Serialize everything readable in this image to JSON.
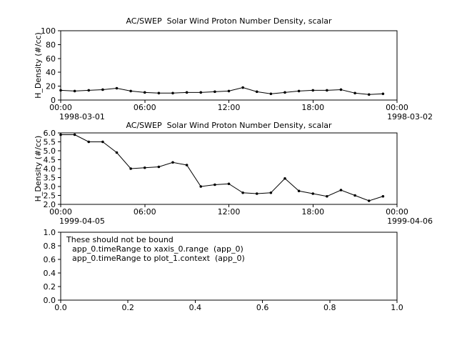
{
  "window": {
    "background": "#ffffff",
    "foreground": "#000000"
  },
  "chart_data": [
    {
      "type": "line",
      "title": "AC/SWEP  Solar Wind Proton Number Density, scalar",
      "ylabel": "H_Density (#/cc)",
      "xlim": [
        0,
        24
      ],
      "ylim": [
        0,
        100
      ],
      "yticks": [
        0,
        20,
        40,
        60,
        80,
        100
      ],
      "ytick_labels": [
        "0",
        "20",
        "40",
        "60",
        "80",
        "100"
      ],
      "xticks": [
        0,
        6,
        12,
        18,
        24
      ],
      "xtick_labels": [
        "00:00",
        "06:00",
        "12:00",
        "18:00",
        "00:00"
      ],
      "x_date_left": "1998-03-01",
      "x_date_right": "1998-03-02",
      "x": [
        0,
        1,
        2,
        3,
        4,
        5,
        6,
        7,
        8,
        9,
        10,
        11,
        12,
        13,
        14,
        15,
        16,
        17,
        18,
        19,
        20,
        21,
        22,
        23
      ],
      "y": [
        14,
        13,
        14,
        15,
        17,
        13,
        11,
        10,
        10,
        11,
        11,
        12,
        13,
        18,
        12,
        9,
        11,
        13,
        14,
        14,
        15,
        10,
        8,
        9
      ],
      "line_color": "#000000",
      "marker": "dot",
      "grid": false,
      "legend": null
    },
    {
      "type": "line",
      "title": "AC/SWEP  Solar Wind Proton Number Density, scalar",
      "ylabel": "H_Density (#/cc)",
      "xlim": [
        0,
        24
      ],
      "ylim": [
        2.0,
        6.0
      ],
      "yticks": [
        2.0,
        2.5,
        3.0,
        3.5,
        4.0,
        4.5,
        5.0,
        5.5,
        6.0
      ],
      "ytick_labels": [
        "2.0",
        "2.5",
        "3.0",
        "3.5",
        "4.0",
        "4.5",
        "5.0",
        "5.5",
        "6.0"
      ],
      "xticks": [
        0,
        6,
        12,
        18,
        24
      ],
      "xtick_labels": [
        "00:00",
        "06:00",
        "12:00",
        "18:00",
        "00:00"
      ],
      "x_date_left": "1999-04-05",
      "x_date_right": "1999-04-06",
      "x": [
        0,
        1,
        2,
        3,
        4,
        5,
        6,
        7,
        8,
        9,
        10,
        11,
        12,
        13,
        14,
        15,
        16,
        17,
        18,
        19,
        20,
        21,
        22,
        23
      ],
      "y": [
        5.9,
        5.9,
        5.5,
        5.5,
        4.9,
        4.0,
        4.05,
        4.1,
        4.35,
        4.2,
        3.0,
        3.1,
        3.15,
        2.65,
        2.6,
        2.65,
        3.45,
        2.75,
        2.6,
        2.45,
        2.8,
        2.5,
        2.2,
        2.45
      ],
      "line_color": "#000000",
      "marker": "dot",
      "grid": false,
      "legend": null
    },
    {
      "type": "annotation",
      "title": "",
      "ylabel": "",
      "xlim": [
        0,
        1
      ],
      "ylim": [
        0,
        1
      ],
      "yticks": [
        0,
        0.2,
        0.4,
        0.6,
        0.8,
        1.0
      ],
      "ytick_labels": [
        "0.0",
        "0.2",
        "0.4",
        "0.6",
        "0.8",
        "1.0"
      ],
      "xticks": [
        0,
        0.2,
        0.4,
        0.6,
        0.8,
        1.0
      ],
      "xtick_labels": [
        "0.0",
        "0.2",
        "0.4",
        "0.6",
        "0.8",
        "1.0"
      ],
      "annotations": [
        "These should not be bound",
        "app_0.timeRange to xaxis_0.range  (app_0)",
        "app_0.timeRange to plot_1.context  (app_0)"
      ],
      "grid": false,
      "legend": null
    }
  ]
}
